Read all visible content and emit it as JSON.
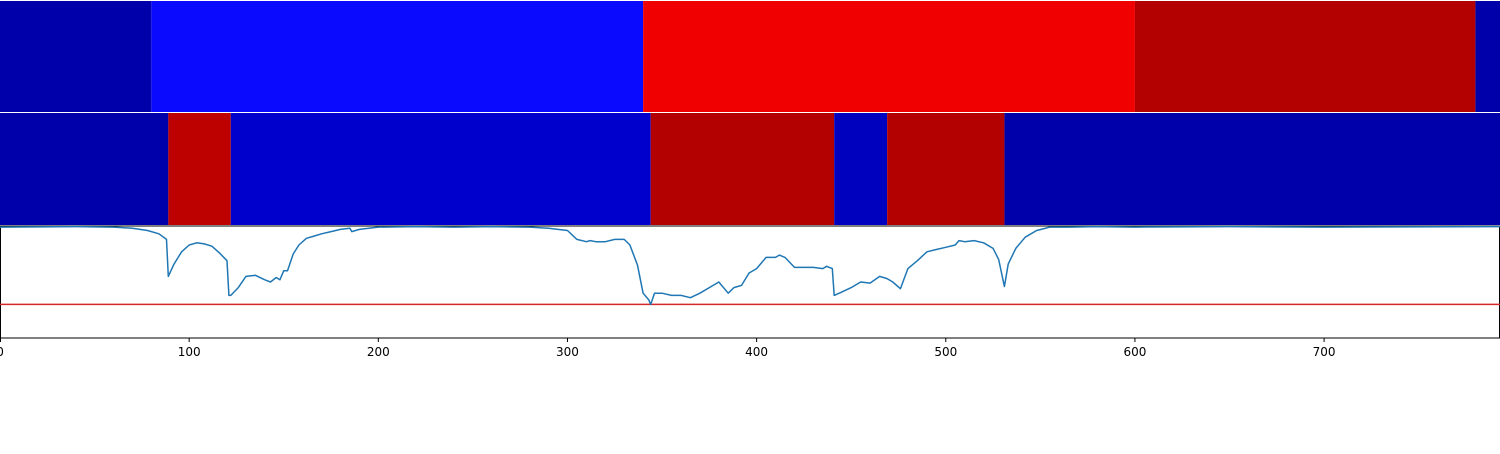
{
  "chart_data": [
    {
      "type": "heatmap",
      "xlim": [
        0,
        793
      ],
      "colormap": "seismic",
      "segments": [
        {
          "x0": 0,
          "x1": 80,
          "value": 0.13
        },
        {
          "x0": 80,
          "x1": 340,
          "value": 0.26
        },
        {
          "x0": 340,
          "x1": 600,
          "value": 0.78
        },
        {
          "x0": 600,
          "x1": 780,
          "value": 0.9
        },
        {
          "x0": 780,
          "x1": 793,
          "value": 0.13
        }
      ]
    },
    {
      "type": "heatmap",
      "xlim": [
        0,
        793
      ],
      "colormap": "seismic",
      "segments": [
        {
          "x0": 0,
          "x1": 89,
          "value": 0.13
        },
        {
          "x0": 89,
          "x1": 122,
          "value": 0.88
        },
        {
          "x0": 122,
          "x1": 344,
          "value": 0.18
        },
        {
          "x0": 344,
          "x1": 441,
          "value": 0.9
        },
        {
          "x0": 441,
          "x1": 469,
          "value": 0.16
        },
        {
          "x0": 469,
          "x1": 531,
          "value": 0.9
        },
        {
          "x0": 531,
          "x1": 793,
          "value": 0.13
        }
      ]
    },
    {
      "type": "line",
      "xlim": [
        0,
        793
      ],
      "ylim": [
        0,
        1
      ],
      "threshold": 0.3,
      "threshold_color": "#d62728",
      "line_color": "#1f77b4",
      "x_ticks": [
        "0",
        "100",
        "200",
        "300",
        "400",
        "500",
        "600",
        "700"
      ],
      "x_tick_values": [
        0,
        100,
        200,
        300,
        400,
        500,
        600,
        700
      ],
      "series": [
        {
          "x": [
            0,
            40,
            60,
            70,
            78,
            84,
            88,
            89,
            92,
            96,
            100,
            104,
            108,
            112,
            116,
            120,
            121,
            122,
            126,
            130,
            135,
            140,
            143,
            146,
            148,
            150,
            152,
            155,
            158,
            162,
            166,
            170,
            175,
            180,
            185,
            186,
            190,
            200,
            220,
            240,
            260,
            280,
            290,
            300,
            305,
            310,
            312,
            315,
            320,
            325,
            330,
            333,
            337,
            340,
            343,
            344,
            346,
            350,
            355,
            360,
            365,
            370,
            375,
            380,
            385,
            388,
            392,
            396,
            400,
            405,
            410,
            412,
            415,
            420,
            425,
            430,
            435,
            437,
            440,
            441,
            445,
            450,
            455,
            460,
            465,
            469,
            472,
            476,
            480,
            485,
            490,
            495,
            500,
            505,
            507,
            510,
            515,
            520,
            525,
            528,
            531,
            533,
            537,
            542,
            548,
            555,
            565,
            580,
            600,
            650,
            700,
            793
          ],
          "y": [
            0.99,
            0.995,
            0.99,
            0.98,
            0.96,
            0.93,
            0.88,
            0.55,
            0.66,
            0.77,
            0.83,
            0.85,
            0.84,
            0.82,
            0.76,
            0.69,
            0.38,
            0.38,
            0.45,
            0.55,
            0.56,
            0.52,
            0.5,
            0.54,
            0.52,
            0.6,
            0.6,
            0.75,
            0.83,
            0.89,
            0.91,
            0.93,
            0.95,
            0.97,
            0.98,
            0.95,
            0.97,
            0.99,
            0.995,
            0.99,
            0.995,
            0.99,
            0.98,
            0.96,
            0.88,
            0.86,
            0.87,
            0.86,
            0.86,
            0.88,
            0.88,
            0.83,
            0.65,
            0.4,
            0.34,
            0.3,
            0.4,
            0.4,
            0.38,
            0.38,
            0.36,
            0.4,
            0.45,
            0.5,
            0.4,
            0.45,
            0.47,
            0.58,
            0.62,
            0.72,
            0.72,
            0.74,
            0.72,
            0.63,
            0.63,
            0.63,
            0.62,
            0.64,
            0.62,
            0.38,
            0.41,
            0.45,
            0.5,
            0.49,
            0.55,
            0.53,
            0.5,
            0.44,
            0.62,
            0.69,
            0.77,
            0.79,
            0.81,
            0.83,
            0.87,
            0.86,
            0.87,
            0.85,
            0.8,
            0.7,
            0.46,
            0.66,
            0.8,
            0.9,
            0.96,
            0.99,
            0.99,
            0.995,
            0.99,
            0.995,
            0.99,
            0.995
          ]
        }
      ]
    }
  ]
}
